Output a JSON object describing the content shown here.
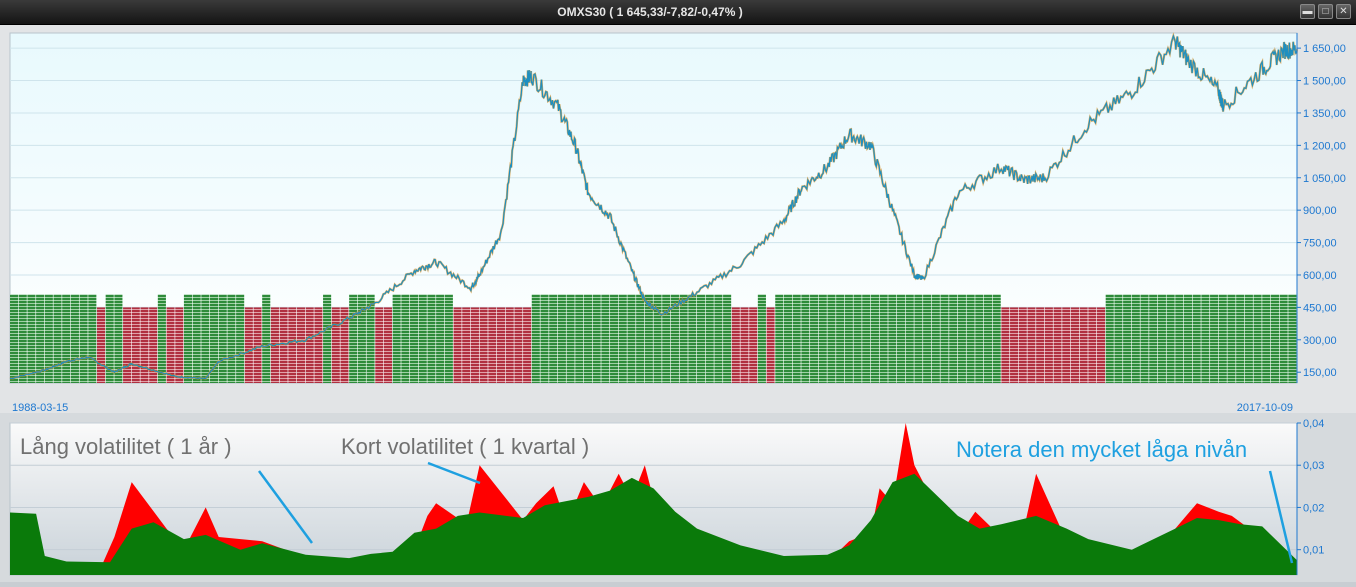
{
  "window": {
    "title": "OMXS30 ( 1 645,33/-7,82/-0,47% )",
    "minimize_icon": "minimize-icon",
    "maximize_icon": "maximize-icon",
    "close_icon": "close-icon"
  },
  "colors": {
    "price_line": "#1f8fbf",
    "candle_accent": "#d98a1a",
    "regime_green": "#2e8b3a",
    "regime_red": "#b03040",
    "vol_long": "#0a7a0a",
    "vol_short": "#ff0000",
    "axis_text": "#1e78d0",
    "annotation_gray": "#707070",
    "annotation_blue": "#1ea0e0"
  },
  "chart_data": [
    {
      "type": "line",
      "title": "",
      "x_start_label": "1988-03-15",
      "x_end_label": "2017-10-09",
      "y_ticks": [
        "1 650,00",
        "1 500,00",
        "1 350,00",
        "1 200,00",
        "1 050,00",
        "900,00",
        "750,00",
        "600,00",
        "450,00",
        "300,00",
        "150,00"
      ],
      "y_tick_values": [
        1650,
        1500,
        1350,
        1200,
        1050,
        900,
        750,
        600,
        450,
        300,
        150
      ],
      "ylim": [
        100,
        1720
      ],
      "xlim": [
        1988.2,
        2017.8
      ],
      "grid": true,
      "series": [
        {
          "x": [
            1988.2,
            1989.0,
            1989.5,
            1990.0,
            1990.6,
            1991.0,
            1992.0,
            1992.7,
            1993.0,
            1994.0,
            1995.0,
            1996.0,
            1996.6,
            1997.5,
            1998.0,
            1998.8,
            1999.0,
            1999.5,
            2000.0,
            2000.2,
            2000.8,
            2001.2,
            2001.5,
            2002.0,
            2002.5,
            2002.8,
            2003.2,
            2004.0,
            2005.0,
            2006.0,
            2006.4,
            2007.0,
            2007.5,
            2008.0,
            2008.5,
            2009.0,
            2009.2,
            2010.0,
            2011.0,
            2011.5,
            2012.0,
            2013.0,
            2014.0,
            2015.0,
            2015.3,
            2016.0,
            2016.1,
            2017.0,
            2017.5,
            2017.8
          ],
          "y": [
            120,
            160,
            200,
            220,
            150,
            190,
            130,
            120,
            200,
            270,
            300,
            400,
            470,
            620,
            660,
            540,
            600,
            800,
            1500,
            1520,
            1380,
            1200,
            980,
            870,
            620,
            480,
            420,
            520,
            650,
            850,
            1000,
            1100,
            1250,
            1200,
            900,
            600,
            580,
            980,
            1100,
            1040,
            1050,
            1300,
            1450,
            1680,
            1590,
            1450,
            1380,
            1550,
            1640,
            1645
          ]
        }
      ],
      "regime_bands": {
        "x_start": 1988.2,
        "x_step": 0.2,
        "states": "GGGGGGGGGGRGGRRRRGRRGGGGGGGRRGRRRRRRGRRGGGRRGGGGGGGRRRRRRRRRGGGGGGGGGGGGGGGGGGGGGGGRRRGRGGGGGGGGGGGGGGGGGGGGGGGGGGRRRRRRRRRRRRGGGGGGGGGGGGGGGGGGGGGGGGGGGGGG"
      }
    },
    {
      "type": "area",
      "title": "",
      "y_ticks": [
        "0,04",
        "0,03",
        "0,02",
        "0,01"
      ],
      "y_tick_values": [
        0.04,
        0.03,
        0.02,
        0.01
      ],
      "ylim": [
        0.004,
        0.04
      ],
      "xlim": [
        1988.2,
        2017.8
      ],
      "grid": true,
      "annotations": {
        "long_vol": "Lång volatilitet ( 1 år )",
        "short_vol": "Kort volatilitet ( 1 kvartal )",
        "note": "Notera den mycket låga nivån"
      },
      "series": [
        {
          "name": "Lång volatilitet ( 1 år )",
          "x": [
            1988.2,
            1988.8,
            1989.0,
            1989.5,
            1990.5,
            1991.0,
            1991.5,
            1992.2,
            1992.7,
            1993.5,
            1994.0,
            1995.0,
            1996.0,
            1996.5,
            1997.0,
            1997.5,
            1998.0,
            1998.5,
            1999.0,
            2000.0,
            2000.5,
            2001.5,
            2002.0,
            2002.5,
            2003.0,
            2003.5,
            2004.0,
            2005.0,
            2006.0,
            2007.0,
            2007.5,
            2008.0,
            2008.5,
            2009.0,
            2009.5,
            2010.0,
            2010.5,
            2011.0,
            2011.8,
            2012.5,
            2013.0,
            2014.0,
            2015.0,
            2015.5,
            2016.0,
            2016.5,
            2017.0,
            2017.5,
            2017.8
          ],
          "y": [
            0.0188,
            0.0185,
            0.0085,
            0.0072,
            0.007,
            0.015,
            0.0165,
            0.0125,
            0.0135,
            0.01,
            0.0115,
            0.0088,
            0.008,
            0.009,
            0.0095,
            0.014,
            0.015,
            0.018,
            0.0188,
            0.0175,
            0.0205,
            0.0225,
            0.024,
            0.027,
            0.0245,
            0.019,
            0.015,
            0.011,
            0.0085,
            0.0088,
            0.011,
            0.017,
            0.026,
            0.028,
            0.023,
            0.018,
            0.015,
            0.016,
            0.018,
            0.015,
            0.0125,
            0.01,
            0.015,
            0.0175,
            0.017,
            0.016,
            0.0155,
            0.0105,
            0.0075
          ]
        },
        {
          "name": "Kort volatilitet ( 1 kvartal )",
          "x": [
            1988.2,
            1988.8,
            1989.0,
            1989.5,
            1990.3,
            1990.6,
            1991.0,
            1991.8,
            1992.2,
            1992.7,
            1993.0,
            1994.0,
            1995.0,
            1996.0,
            1996.5,
            1997.0,
            1997.5,
            1997.8,
            1998.0,
            1998.7,
            1999.0,
            2000.0,
            2000.3,
            2000.7,
            2001.0,
            2001.4,
            2001.8,
            2002.2,
            2002.5,
            2002.8,
            2003.0,
            2003.5,
            2004.0,
            2005.0,
            2006.0,
            2006.5,
            2007.0,
            2007.5,
            2008.0,
            2008.2,
            2008.5,
            2008.8,
            2009.0,
            2009.5,
            2010.0,
            2010.4,
            2011.0,
            2011.5,
            2011.8,
            2012.5,
            2013.0,
            2014.0,
            2014.5,
            2015.0,
            2015.5,
            2016.0,
            2016.3,
            2016.7,
            2017.0,
            2017.5,
            2017.8
          ],
          "y": [
            0.017,
            0.017,
            0.0065,
            0.0065,
            0.006,
            0.013,
            0.026,
            0.015,
            0.01,
            0.02,
            0.013,
            0.012,
            0.0082,
            0.0075,
            0.0085,
            0.009,
            0.01,
            0.018,
            0.021,
            0.016,
            0.03,
            0.017,
            0.021,
            0.025,
            0.016,
            0.026,
            0.02,
            0.028,
            0.022,
            0.03,
            0.022,
            0.018,
            0.013,
            0.0085,
            0.008,
            0.008,
            0.007,
            0.012,
            0.014,
            0.0245,
            0.021,
            0.04,
            0.03,
            0.02,
            0.013,
            0.019,
            0.013,
            0.014,
            0.028,
            0.012,
            0.011,
            0.0075,
            0.009,
            0.015,
            0.021,
            0.019,
            0.018,
            0.015,
            0.014,
            0.0075,
            0.007
          ]
        }
      ]
    }
  ]
}
